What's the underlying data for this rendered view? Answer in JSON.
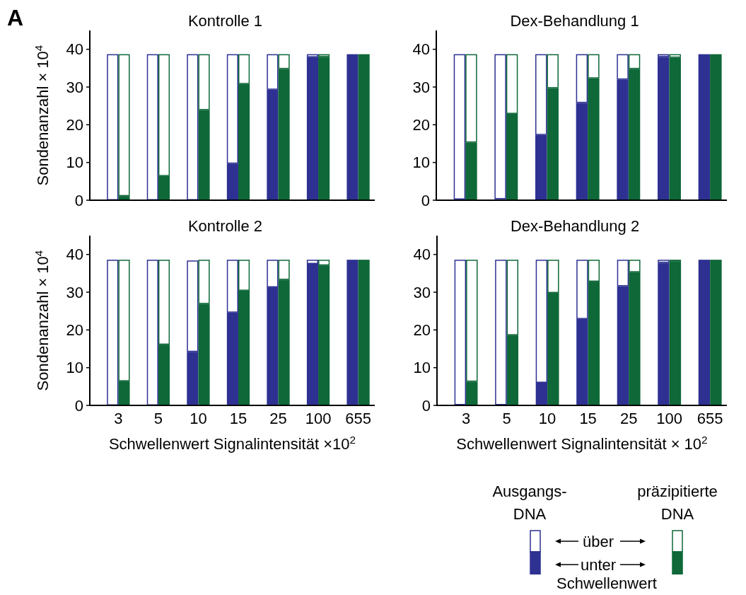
{
  "chart_data": [
    {
      "type": "bar",
      "title": "Kontrolle 1",
      "ylabel": "Sondenanzahl × 10$^{4}$",
      "annotations": [
        "A"
      ],
      "categories": [
        null,
        "3",
        null,
        null,
        null,
        null,
        null,
        null,
        "5",
        null,
        null,
        null,
        null,
        null,
        null,
        "10",
        null,
        null,
        null,
        null,
        null,
        null,
        "15",
        null,
        null,
        null,
        null,
        null,
        null,
        "25",
        null,
        null,
        null,
        null,
        null,
        null,
        "100",
        null,
        null,
        null,
        null,
        null,
        null,
        "655",
        null
      ],
      "stacked": true,
      "tick_labels": "y",
      "ylim": [
        0,
        45
      ],
      "yticks": [
        0,
        10,
        20,
        30,
        40
      ],
      "series": [
        {
          "colors": [
            "#2e3192",
            null,
            "#0e6838",
            null,
            null,
            null,
            null,
            "#2e3192",
            null,
            "#0e6838",
            null,
            null,
            null,
            null,
            "#2e3192",
            null,
            "#0e6838",
            null,
            null,
            null,
            null,
            "#2e3192",
            null,
            "#0e6838",
            null,
            null,
            null,
            null,
            "#2e3192",
            null,
            "#0e6838",
            null,
            null,
            null,
            null,
            "#2e3192",
            null,
            "#0e6838",
            null,
            null,
            null,
            null,
            "#2e3192",
            null,
            "#0e6838"
          ],
          "values": [
            0,
            null,
            1.1,
            null,
            null,
            null,
            null,
            0,
            null,
            6.4,
            null,
            null,
            null,
            null,
            0,
            null,
            23.9,
            null,
            null,
            null,
            null,
            9.7,
            null,
            30.8,
            null,
            null,
            null,
            null,
            29.3,
            null,
            34.8,
            null,
            null,
            null,
            null,
            37.9,
            null,
            38.0,
            null,
            null,
            null,
            null,
            38.7,
            null,
            38.7
          ]
        },
        {
          "color": "#ffffff",
          "values": [
            38.7,
            null,
            37.6,
            null,
            null,
            null,
            null,
            38.7,
            null,
            32.3,
            null,
            null,
            null,
            null,
            38.7,
            null,
            14.8,
            null,
            null,
            null,
            null,
            29.0,
            null,
            7.9,
            null,
            null,
            null,
            null,
            9.4,
            null,
            3.9,
            null,
            null,
            null,
            null,
            0.8,
            null,
            0.7,
            null,
            null,
            null,
            null,
            0,
            null,
            0
          ]
        }
      ]
    },
    {
      "type": "bar",
      "title": "Dex-Behandlung 1",
      "categories": [
        null,
        "3",
        null,
        null,
        null,
        null,
        null,
        null,
        "5",
        null,
        null,
        null,
        null,
        null,
        null,
        "10",
        null,
        null,
        null,
        null,
        null,
        null,
        "15",
        null,
        null,
        null,
        null,
        null,
        null,
        "25",
        null,
        null,
        null,
        null,
        null,
        null,
        "100",
        null,
        null,
        null,
        null,
        null,
        null,
        "655",
        null
      ],
      "stacked": true,
      "tick_labels": "y",
      "ylim": [
        0,
        45
      ],
      "yticks": [
        0,
        10,
        20,
        30,
        40
      ],
      "series": [
        {
          "colors": [
            "#2e3192",
            null,
            "#0e6838",
            null,
            null,
            null,
            null,
            "#2e3192",
            null,
            "#0e6838",
            null,
            null,
            null,
            null,
            "#2e3192",
            null,
            "#0e6838",
            null,
            null,
            null,
            null,
            "#2e3192",
            null,
            "#0e6838",
            null,
            null,
            null,
            null,
            "#2e3192",
            null,
            "#0e6838",
            null,
            null,
            null,
            null,
            "#2e3192",
            null,
            "#0e6838",
            null,
            null,
            null,
            null,
            "#2e3192",
            null,
            "#0e6838"
          ],
          "values": [
            0.2,
            null,
            15.3,
            null,
            null,
            null,
            null,
            0.3,
            null,
            22.9,
            null,
            null,
            null,
            null,
            17.3,
            null,
            29.7,
            null,
            null,
            null,
            null,
            25.8,
            null,
            32.3,
            null,
            null,
            null,
            null,
            32.0,
            null,
            34.8,
            null,
            null,
            null,
            null,
            38.0,
            null,
            37.8,
            null,
            null,
            null,
            null,
            38.7,
            null,
            38.7
          ]
        },
        {
          "color": "#ffffff",
          "values": [
            38.5,
            null,
            23.4,
            null,
            null,
            null,
            null,
            38.4,
            null,
            15.8,
            null,
            null,
            null,
            null,
            21.4,
            null,
            9.0,
            null,
            null,
            null,
            null,
            12.9,
            null,
            6.4,
            null,
            null,
            null,
            null,
            6.7,
            null,
            3.9,
            null,
            null,
            null,
            null,
            0.7,
            null,
            0.9,
            null,
            null,
            null,
            null,
            0,
            null,
            0
          ]
        }
      ]
    },
    {
      "type": "bar",
      "title": "Kontrolle 2",
      "xlabel": "Schwellenwert Signalintensität ×10$^{2}$",
      "ylabel": "Sondenanzahl × 10$^{4}$",
      "categories": [
        null,
        "3",
        null,
        null,
        null,
        null,
        null,
        null,
        "5",
        null,
        null,
        null,
        null,
        null,
        null,
        "10",
        null,
        null,
        null,
        null,
        null,
        null,
        "15",
        null,
        null,
        null,
        null,
        null,
        null,
        "25",
        null,
        null,
        null,
        null,
        null,
        null,
        "100",
        null,
        null,
        null,
        null,
        null,
        null,
        "655",
        null
      ],
      "stacked": true,
      "ylim": [
        0,
        45
      ],
      "yticks": [
        0,
        10,
        20,
        30,
        40
      ],
      "series": [
        {
          "colors": [
            "#2e3192",
            null,
            "#0e6838",
            null,
            null,
            null,
            null,
            "#2e3192",
            null,
            "#0e6838",
            null,
            null,
            null,
            null,
            "#2e3192",
            null,
            "#0e6838",
            null,
            null,
            null,
            null,
            "#2e3192",
            null,
            "#0e6838",
            null,
            null,
            null,
            null,
            "#2e3192",
            null,
            "#0e6838",
            null,
            null,
            null,
            null,
            "#2e3192",
            null,
            "#0e6838",
            null,
            null,
            null,
            null,
            "#2e3192",
            null,
            "#0e6838"
          ],
          "values": [
            0,
            null,
            6.4,
            null,
            null,
            null,
            null,
            0,
            null,
            16.1,
            null,
            null,
            null,
            null,
            14.2,
            null,
            26.9,
            null,
            null,
            null,
            null,
            24.6,
            null,
            30.4,
            null,
            null,
            null,
            null,
            31.3,
            null,
            33.3,
            null,
            null,
            null,
            null,
            37.5,
            null,
            37.1,
            null,
            null,
            null,
            null,
            38.6,
            null,
            38.6
          ]
        },
        {
          "color": "#ffffff",
          "values": [
            38.6,
            null,
            32.2,
            null,
            null,
            null,
            null,
            38.6,
            null,
            22.5,
            null,
            null,
            null,
            null,
            24.2,
            null,
            11.7,
            null,
            null,
            null,
            null,
            14.0,
            null,
            8.2,
            null,
            null,
            null,
            null,
            7.3,
            null,
            5.3,
            null,
            null,
            null,
            null,
            1.1,
            null,
            1.5,
            null,
            null,
            null,
            null,
            0,
            null,
            0
          ]
        }
      ]
    },
    {
      "type": "bar",
      "title": "Dex-Behandlung 2",
      "xlabel": "Schwellenwert Signalintensität × 10$^{2}$",
      "annotations": [
        "Ausgangs-DNA",
        "präzipitierte DNA",
        "über",
        "unter",
        "Schwellenwert"
      ],
      "categories": [
        null,
        "3",
        null,
        null,
        null,
        null,
        null,
        null,
        "5",
        null,
        null,
        null,
        null,
        null,
        null,
        "10",
        null,
        null,
        null,
        null,
        null,
        null,
        "15",
        null,
        null,
        null,
        null,
        null,
        null,
        "25",
        null,
        null,
        null,
        null,
        null,
        null,
        "100",
        null,
        null,
        null,
        null,
        null,
        null,
        "655",
        null
      ],
      "stacked": true,
      "ylim": [
        0,
        45
      ],
      "yticks": [
        0,
        10,
        20,
        30,
        40
      ],
      "series": [
        {
          "colors": [
            "#2e3192",
            null,
            "#0e6838",
            null,
            null,
            null,
            null,
            "#2e3192",
            null,
            "#0e6838",
            null,
            null,
            null,
            null,
            "#2e3192",
            null,
            "#0e6838",
            null,
            null,
            null,
            null,
            "#2e3192",
            null,
            "#0e6838",
            null,
            null,
            null,
            null,
            "#2e3192",
            null,
            "#0e6838",
            null,
            null,
            null,
            null,
            "#2e3192",
            null,
            "#0e6838",
            null,
            null,
            null,
            null,
            "#2e3192",
            null,
            "#0e6838"
          ],
          "values": [
            0.1,
            null,
            6.3,
            null,
            null,
            null,
            null,
            0.1,
            null,
            18.6,
            null,
            null,
            null,
            null,
            6.0,
            null,
            29.8,
            null,
            null,
            null,
            null,
            22.9,
            null,
            32.8,
            null,
            null,
            null,
            null,
            31.6,
            null,
            35.3,
            null,
            null,
            null,
            null,
            37.8,
            null,
            38.1,
            null,
            null,
            null,
            null,
            38.6,
            null,
            38.6
          ]
        },
        {
          "color": "#ffffff",
          "values": [
            38.5,
            null,
            32.3,
            null,
            null,
            null,
            null,
            38.5,
            null,
            20.0,
            null,
            null,
            null,
            null,
            32.6,
            null,
            8.8,
            null,
            null,
            null,
            null,
            15.7,
            null,
            5.8,
            null,
            null,
            null,
            null,
            7.0,
            null,
            3.3,
            null,
            null,
            null,
            null,
            0.8,
            null,
            0.5,
            null,
            null,
            null,
            null,
            0,
            null,
            0
          ]
        }
      ]
    }
  ]
}
